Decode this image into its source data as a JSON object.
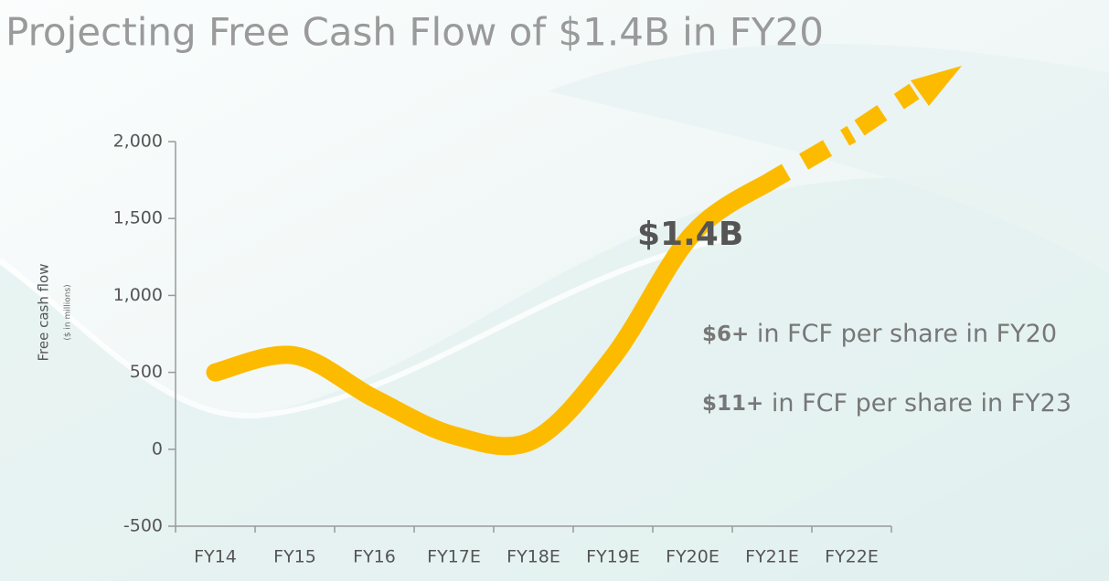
{
  "chart_data": {
    "type": "line",
    "title": "Projecting Free Cash Flow of $1.4B in FY20",
    "y_label": "Free cash flow",
    "y_sublabel": "($ in millions)",
    "categories": [
      "FY14",
      "FY15",
      "FY16",
      "FY17E",
      "FY18E",
      "FY19E",
      "FY20E",
      "FY21E",
      "FY22E"
    ],
    "series": [
      {
        "name": "Free cash flow",
        "color": "#fdbb00",
        "values": [
          500,
          610,
          330,
          90,
          60,
          600,
          1400,
          1750,
          2050
        ]
      }
    ],
    "ylim": [
      -500,
      2000
    ],
    "yticks": [
      -500,
      0,
      500,
      {
        "value": 1000,
        "label": "1,000"
      },
      {
        "value": 1500,
        "label": "1,500"
      },
      {
        "value": 2000,
        "label": "2,000"
      }
    ],
    "annotations": [
      {
        "text": "$1.4B"
      },
      {
        "bold": "$6+",
        "text": "in FCF per share in FY20"
      },
      {
        "bold": "$11+",
        "text": "in FCF per share in FY23"
      }
    ]
  }
}
